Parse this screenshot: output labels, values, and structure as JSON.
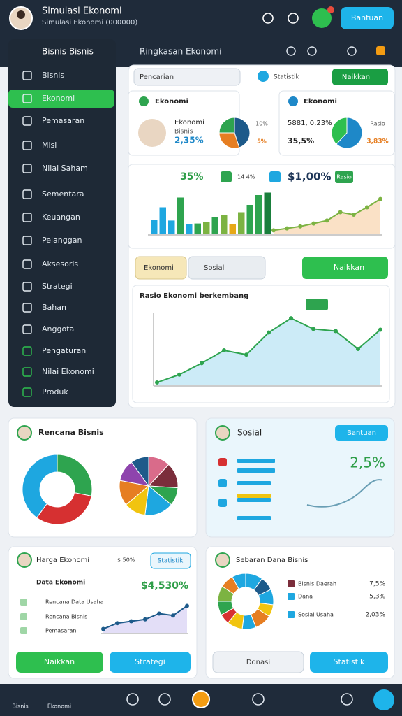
{
  "header": {
    "title": "Simulasi Ekonomi",
    "subtitle": "Simulasi Ekonomi (000000)",
    "button": "Bantuan"
  },
  "sidebar": {
    "title": "Bisnis Bisnis",
    "items": [
      "Bisnis",
      "Ekonomi",
      "Pemasaran",
      "Misi",
      "Nilai Saham",
      "Sementara",
      "Keuangan",
      "Pelanggan",
      "Aksesoris",
      "Strategi",
      "Bahan",
      "Anggota",
      "Pengaturan",
      "Nilai Ekonomi",
      "Produk"
    ]
  },
  "topbar": {
    "title": "Ringkasan Ekonomi",
    "search": "Pencarian",
    "label": "Statistik",
    "button": "Naikkan"
  },
  "cards": [
    {
      "title": "Ekonomi",
      "name": "Ekonomi",
      "sub": "Bisnis",
      "value": "2,35%",
      "labels": [
        "10%",
        "5%"
      ],
      "pie": {
        "values": [
          45,
          30,
          25
        ],
        "colors": [
          "#1d5a8a",
          "#e67e22",
          "#2ea44f"
        ]
      }
    },
    {
      "title": "Ekonomi",
      "name": "5881, 0,23%",
      "value": "35,5%",
      "labels": [
        "Rasio",
        "3,83%"
      ],
      "pie": {
        "values": [
          62,
          38
        ],
        "colors": [
          "#1e88c8",
          "#2ebf4f"
        ]
      }
    }
  ],
  "stats": {
    "growth": "35%",
    "small": "14 4%",
    "money": "$1,00%",
    "badge": "Rasio"
  },
  "bar_chart": {
    "type": "bar",
    "ylim": [
      0,
      100
    ],
    "values": [
      30,
      55,
      28,
      75,
      20,
      22,
      25,
      35,
      40,
      20,
      45,
      60,
      80,
      85
    ],
    "colors": [
      "#1ea7e0",
      "#1ea7e0",
      "#1ea7e0",
      "#2ea44f",
      "#1ea7e0",
      "#2ea44f",
      "#7cb342",
      "#2ea44f",
      "#7cb342",
      "#e6a817",
      "#7cb342",
      "#2ea44f",
      "#2ea44f",
      "#1a7f3c"
    ],
    "trend": {
      "type": "line",
      "color": "#7cb342",
      "fill": "#f9d9b8",
      "values": [
        8,
        12,
        16,
        22,
        28,
        45,
        40,
        55,
        72
      ]
    }
  },
  "controls": {
    "dropdown": "Ekonomi",
    "filter": "Sosial",
    "button": "Naikkan"
  },
  "line_chart": {
    "type": "line",
    "title": "Rasio Ekonomi berkembang",
    "ylim": [
      0,
      100
    ],
    "color": "#2ea44f",
    "fill": "#bfe6f5",
    "values": [
      3,
      14,
      30,
      48,
      42,
      73,
      93,
      78,
      75,
      50,
      77
    ]
  },
  "plan": {
    "title": "Rencana Bisnis",
    "donut": {
      "type": "pie",
      "values": [
        28,
        32,
        40
      ],
      "colors": [
        "#2ea44f",
        "#d63031",
        "#1ea7e0"
      ]
    },
    "pie": {
      "type": "pie",
      "values": [
        12,
        14,
        10,
        16,
        12,
        14,
        12,
        10
      ],
      "colors": [
        "#d96b8a",
        "#7b2d3b",
        "#2ea44f",
        "#1ea7e0",
        "#f1c40f",
        "#e67e22",
        "#8e44ad",
        "#1d5a8a"
      ]
    }
  },
  "social": {
    "title": "Sosial",
    "button": "Bantuan",
    "value": "2,5%"
  },
  "prices": {
    "title": "Harga Ekonomi",
    "value": "$ 50%",
    "button": "Statistik",
    "subtitle": "Data Ekonomi",
    "amount": "$4,530%",
    "items": [
      "Rencana Data Usaha",
      "Rencana Bisnis",
      "Pemasaran"
    ],
    "chart": {
      "type": "line",
      "color": "#1d5a8a",
      "fill": "#dcd6f5",
      "values": [
        10,
        25,
        30,
        35,
        50,
        45,
        70
      ]
    },
    "buttons": [
      "Naikkan",
      "Strategi"
    ]
  },
  "funds": {
    "title": "Sebaran Dana Bisnis",
    "legend": [
      {
        "name": "Bisnis Daerah",
        "value": "7,5%",
        "color": "#7b2d3b"
      },
      {
        "name": "Dana",
        "value": "5,3%",
        "color": "#1ea7e0"
      },
      {
        "name": "Sosial Usaha",
        "value": "2,03%",
        "color": "#1ea7e0"
      }
    ],
    "donut": {
      "type": "pie",
      "values": [
        10,
        8,
        9,
        7,
        10,
        8,
        9,
        6,
        8,
        9,
        8,
        8
      ],
      "colors": [
        "#1ea7e0",
        "#1d5a8a",
        "#1ea7e0",
        "#f1c40f",
        "#e67e22",
        "#1ea7e0",
        "#f1c40f",
        "#d63031",
        "#2ea44f",
        "#7cb342",
        "#e67e22",
        "#1ea7e0"
      ]
    },
    "buttons": [
      "Donasi",
      "Statistik"
    ]
  },
  "nav": [
    "Bisnis",
    "Ekonomi"
  ]
}
